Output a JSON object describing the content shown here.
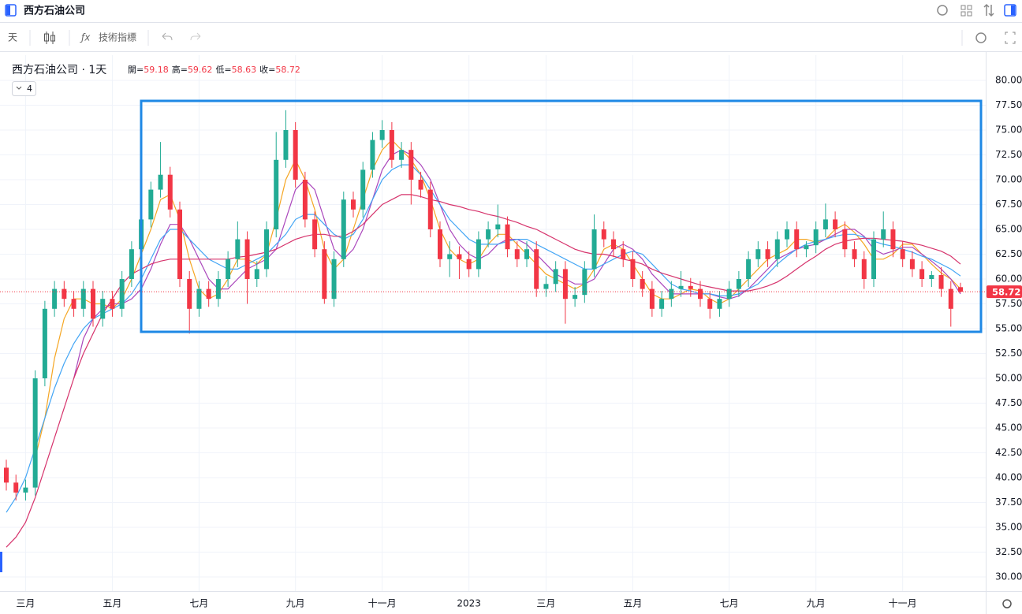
{
  "header": {
    "title": "西方石油公司"
  },
  "toolbar": {
    "interval": "天",
    "indicators": "技術指標"
  },
  "chart_data": {
    "type": "candlestick",
    "title": "西方石油公司 · 1天",
    "indicator_count": 4,
    "ohlc_labels": [
      "開=",
      "高=",
      "低=",
      "收="
    ],
    "categories": [
      null,
      null,
      "三月",
      null,
      null,
      null,
      null,
      null,
      null,
      null,
      null,
      "五月",
      null,
      null,
      null,
      null,
      null,
      null,
      null,
      null,
      "七月",
      null,
      null,
      null,
      null,
      null,
      null,
      null,
      null,
      null,
      "九月",
      null,
      null,
      null,
      null,
      null,
      null,
      null,
      null,
      "十一月",
      null,
      null,
      null,
      null,
      null,
      null,
      null,
      null,
      "2023",
      null,
      null,
      null,
      null,
      null,
      null,
      null,
      "三月",
      null,
      null,
      null,
      null,
      null,
      null,
      null,
      null,
      "五月",
      null,
      null,
      null,
      null,
      null,
      null,
      null,
      null,
      null,
      "七月",
      null,
      null,
      null,
      null,
      null,
      null,
      null,
      null,
      "九月",
      null,
      null,
      null,
      null,
      null,
      null,
      null,
      null,
      "十一月",
      null,
      null,
      null,
      null,
      null,
      null
    ],
    "ohlc": [
      [
        41,
        41.8,
        38.7,
        39.5
      ],
      [
        39.5,
        40.3,
        37.7,
        38.5
      ],
      [
        38.5,
        39.8,
        37.7,
        39
      ],
      [
        39,
        50.8,
        38.2,
        50
      ],
      [
        50,
        57.8,
        49.2,
        57
      ],
      [
        57,
        59.8,
        56.2,
        59
      ],
      [
        59,
        59.8,
        57.2,
        58
      ],
      [
        58,
        58.8,
        56.2,
        57
      ],
      [
        57,
        59.8,
        56.2,
        59
      ],
      [
        59,
        59.8,
        55.2,
        56
      ],
      [
        56,
        58.8,
        55.2,
        58
      ],
      [
        58,
        58.8,
        56.2,
        57
      ],
      [
        57,
        60.8,
        56.2,
        60
      ],
      [
        60,
        63.8,
        59.2,
        63
      ],
      [
        63,
        66.8,
        62.2,
        66
      ],
      [
        66,
        69.8,
        65.2,
        69
      ],
      [
        69,
        73.8,
        68.2,
        70.5
      ],
      [
        70.5,
        71.3,
        66.2,
        67
      ],
      [
        67,
        67.8,
        59.2,
        60
      ],
      [
        60,
        60.8,
        54.5,
        57
      ],
      [
        57,
        59.8,
        56.2,
        59
      ],
      [
        59,
        59.8,
        57.2,
        58
      ],
      [
        58,
        60.8,
        57.2,
        60
      ],
      [
        60,
        62.8,
        59.2,
        62
      ],
      [
        62,
        65.8,
        61.2,
        64
      ],
      [
        64,
        64.8,
        57.5,
        60
      ],
      [
        60,
        61.8,
        59.2,
        61
      ],
      [
        61,
        65.8,
        60.2,
        65
      ],
      [
        65,
        74.8,
        64.2,
        72
      ],
      [
        72,
        77,
        71.2,
        75
      ],
      [
        75,
        75.8,
        69.2,
        70
      ],
      [
        70,
        70.8,
        65.2,
        66
      ],
      [
        66,
        66.8,
        62.2,
        63
      ],
      [
        63,
        63.8,
        57.5,
        58
      ],
      [
        58,
        62.8,
        57.2,
        62
      ],
      [
        62,
        68.8,
        61.2,
        68
      ],
      [
        68,
        68.8,
        66.2,
        67
      ],
      [
        67,
        71.8,
        66.2,
        71
      ],
      [
        71,
        74.8,
        70.2,
        74
      ],
      [
        74,
        76,
        73.2,
        75
      ],
      [
        75,
        75.8,
        71.2,
        72
      ],
      [
        72,
        73.8,
        71.2,
        73
      ],
      [
        73,
        73.8,
        67.5,
        70
      ],
      [
        70,
        70.8,
        68.2,
        69
      ],
      [
        69,
        69.8,
        64.2,
        65
      ],
      [
        65,
        65.8,
        61.2,
        62
      ],
      [
        62,
        63.8,
        60.2,
        62.5
      ],
      [
        62.5,
        63.3,
        60,
        62
      ],
      [
        62,
        62.8,
        60.2,
        61
      ],
      [
        61,
        64.8,
        60.2,
        64
      ],
      [
        64,
        65.8,
        63.2,
        65
      ],
      [
        65,
        67.5,
        64.2,
        65.5
      ],
      [
        65.5,
        66.3,
        62.2,
        63
      ],
      [
        63,
        63.8,
        61.2,
        62
      ],
      [
        62,
        63.8,
        61.2,
        63
      ],
      [
        63,
        63.8,
        58.2,
        59
      ],
      [
        59,
        60.3,
        58.2,
        59.5
      ],
      [
        59.5,
        61.8,
        58.7,
        61
      ],
      [
        61,
        61.8,
        55.5,
        58
      ],
      [
        58,
        59.2,
        57.2,
        58.4
      ],
      [
        58.4,
        61.8,
        57.6,
        61
      ],
      [
        61,
        66.5,
        60.2,
        65
      ],
      [
        65,
        65.8,
        63.2,
        64
      ],
      [
        64,
        64.8,
        62.2,
        63
      ],
      [
        63,
        63.8,
        61.2,
        62
      ],
      [
        62,
        62.8,
        59.2,
        60
      ],
      [
        60,
        60.8,
        58.2,
        59
      ],
      [
        59,
        59.8,
        56.2,
        57
      ],
      [
        57,
        58.8,
        56.2,
        58
      ],
      [
        58,
        59.8,
        57.2,
        59
      ],
      [
        59,
        60.8,
        58.2,
        59.3
      ],
      [
        59.3,
        60.1,
        58.2,
        59
      ],
      [
        59,
        59.8,
        57.2,
        58
      ],
      [
        58,
        58.8,
        56,
        57
      ],
      [
        57,
        58.8,
        56.2,
        58
      ],
      [
        58,
        59.8,
        57.2,
        59
      ],
      [
        59,
        60.8,
        58.2,
        60
      ],
      [
        60,
        62.8,
        59.2,
        62
      ],
      [
        62,
        63.8,
        61.2,
        63
      ],
      [
        63,
        63.8,
        61.2,
        62
      ],
      [
        62,
        64.8,
        61.2,
        64
      ],
      [
        64,
        65.8,
        63.2,
        65
      ],
      [
        65,
        65.8,
        62.2,
        63
      ],
      [
        63,
        63.8,
        62.2,
        63.4
      ],
      [
        63.4,
        65.8,
        62.6,
        65
      ],
      [
        65,
        67.6,
        64.2,
        66
      ],
      [
        66,
        66.8,
        64.2,
        65
      ],
      [
        65,
        65.8,
        62.2,
        63
      ],
      [
        63,
        63.8,
        61.2,
        62
      ],
      [
        62,
        62.8,
        59,
        60
      ],
      [
        60,
        64.8,
        59.2,
        64
      ],
      [
        64,
        66.8,
        63.2,
        65
      ],
      [
        65,
        65.8,
        62.2,
        63
      ],
      [
        63,
        63.8,
        61.2,
        62
      ],
      [
        62,
        62.8,
        60.2,
        61
      ],
      [
        61,
        61.8,
        59.2,
        60
      ],
      [
        60,
        60.8,
        59.2,
        60.4
      ],
      [
        60.4,
        61.2,
        58.2,
        59
      ],
      [
        59,
        59.8,
        55.2,
        57
      ],
      [
        59.18,
        59.62,
        58.63,
        58.72
      ]
    ],
    "up_color": "#22ab94",
    "down_color": "#f23645",
    "lines": [
      {
        "color": "#f5a623",
        "values": [
          null,
          null,
          null,
          42,
          46,
          52,
          56,
          58,
          58,
          57.5,
          57.5,
          57,
          58,
          60,
          62.5,
          65,
          68,
          68.5,
          66,
          62,
          59,
          58,
          58.5,
          60,
          62,
          62,
          61.5,
          62.5,
          66,
          70,
          72,
          70,
          67,
          63,
          61,
          62,
          65,
          68,
          71,
          73,
          74,
          73,
          72,
          70.5,
          68,
          65,
          63,
          62,
          61.5,
          62,
          63.5,
          64.5,
          64.5,
          63.5,
          62.5,
          61.5,
          60.5,
          60,
          59.5,
          59,
          59.5,
          61,
          63,
          63.5,
          63,
          61.5,
          60,
          58.5,
          58,
          58,
          58.5,
          59,
          58.8,
          58,
          57.5,
          58,
          59,
          60,
          61,
          62,
          62.5,
          63,
          64,
          64,
          63.7,
          64,
          65,
          65.5,
          64.7,
          63.5,
          62,
          62,
          62.5,
          63.5,
          63.5,
          62.5,
          61.5,
          60.6,
          60,
          59
        ]
      },
      {
        "color": "#ab47bc",
        "values": [
          null,
          null,
          null,
          null,
          null,
          null,
          null,
          50,
          54,
          56,
          57,
          57.5,
          57.5,
          58,
          59,
          61,
          63.5,
          65.5,
          65.5,
          64,
          62,
          60,
          59,
          59,
          60,
          61,
          61.5,
          62,
          63,
          66,
          69,
          70,
          69,
          66,
          63,
          62,
          63,
          65,
          68,
          71,
          72.5,
          73,
          72.5,
          71.5,
          70,
          67.5,
          65,
          63.5,
          62.5,
          62,
          62.5,
          63.5,
          64,
          64,
          63.5,
          62.5,
          61.5,
          60.5,
          60,
          59.5,
          59.5,
          60,
          61.5,
          63,
          63.5,
          63,
          62,
          60.5,
          59.5,
          58.5,
          58.5,
          58.5,
          58.5,
          58.5,
          58.2,
          58,
          58.3,
          59,
          60,
          61,
          62,
          62.5,
          63,
          63.3,
          63.5,
          64,
          64.5,
          65,
          65,
          64.3,
          63,
          62.5,
          62.8,
          63.2,
          63.2,
          62.5,
          61.8,
          61,
          60,
          58.5
        ]
      },
      {
        "color": "#42a5f5",
        "values": [
          36.5,
          38,
          40,
          43,
          46,
          49,
          51.5,
          53.5,
          55,
          56,
          56.5,
          57,
          57.5,
          58.5,
          60,
          62,
          64,
          65,
          65,
          64,
          63,
          62,
          61.5,
          61,
          61,
          61.5,
          62,
          62.5,
          63.5,
          64.5,
          66,
          66.5,
          66.5,
          65.5,
          64.5,
          64,
          64.5,
          66,
          68,
          70,
          71,
          71.5,
          71.5,
          70.5,
          69,
          67.5,
          66,
          65,
          64,
          63.5,
          63.5,
          63.5,
          63.8,
          64,
          64,
          63.5,
          63,
          62.5,
          62,
          61.5,
          61,
          61,
          61.5,
          62,
          62.5,
          62.8,
          62.5,
          61.5,
          60.5,
          59.5,
          59,
          58.8,
          58.5,
          58.5,
          58.3,
          58.3,
          58.5,
          59,
          59.5,
          60.5,
          61.5,
          62.3,
          63,
          63.5,
          63.8,
          64,
          64.3,
          64.5,
          64.5,
          64.2,
          63.8,
          63.5,
          63.3,
          63,
          62.7,
          62.3,
          62,
          61.5,
          61,
          60.3
        ]
      },
      {
        "color": "#d6336c",
        "values": [
          33,
          34,
          35.5,
          38,
          41,
          44,
          47,
          50,
          52.5,
          54.5,
          56.5,
          58,
          59.5,
          60.5,
          61,
          61.5,
          61.8,
          62,
          62,
          62,
          62,
          62,
          62,
          62,
          62.2,
          62.3,
          62.5,
          62.7,
          63,
          63.5,
          64,
          64.3,
          64.5,
          64.5,
          64.3,
          64.3,
          64.8,
          65.5,
          66.5,
          67.5,
          68,
          68.5,
          68.5,
          68.3,
          68,
          67.8,
          67.5,
          67.3,
          67,
          66.8,
          66.5,
          66.3,
          66,
          65.7,
          65.3,
          65,
          64.5,
          64,
          63.5,
          63,
          62.7,
          62.5,
          62.5,
          62.3,
          62,
          61.8,
          61.5,
          61,
          60.6,
          60.3,
          60,
          59.7,
          59.4,
          59.2,
          59,
          58.8,
          58.8,
          58.8,
          59,
          59.3,
          59.7,
          60.3,
          61,
          61.7,
          62.3,
          63,
          63.5,
          63.8,
          64,
          64.1,
          64.1,
          64,
          63.9,
          63.8,
          63.6,
          63.4,
          63.1,
          62.8,
          62.3,
          61.5
        ]
      }
    ],
    "ylim": [
      28.57,
      82.54
    ],
    "yticks": [
      {
        "value": 30,
        "label": "30.00"
      },
      {
        "value": 32.5,
        "label": "32.50"
      },
      {
        "value": 35,
        "label": "35.00"
      },
      {
        "value": 37.5,
        "label": "37.50"
      },
      {
        "value": 40,
        "label": "40.00"
      },
      {
        "value": 42.5,
        "label": "42.50"
      },
      {
        "value": 45,
        "label": "45.00"
      },
      {
        "value": 47.5,
        "label": "47.50"
      },
      {
        "value": 50,
        "label": "50.00"
      },
      {
        "value": 52.5,
        "label": "52.50"
      },
      {
        "value": 55,
        "label": "55.00"
      },
      {
        "value": 57.5,
        "label": "57.50"
      },
      {
        "value": 60,
        "label": "60.00"
      },
      {
        "value": 62.5,
        "label": "62.50"
      },
      {
        "value": 65,
        "label": "65.00"
      },
      {
        "value": 67.5,
        "label": "67.50"
      },
      {
        "value": 70,
        "label": "70.00"
      },
      {
        "value": 72.5,
        "label": "72.50"
      },
      {
        "value": 75,
        "label": "75.00"
      },
      {
        "value": 77.5,
        "label": "77.50"
      },
      {
        "value": 80,
        "label": "80.00"
      }
    ],
    "grid": true,
    "last_price_line": true
  }
}
